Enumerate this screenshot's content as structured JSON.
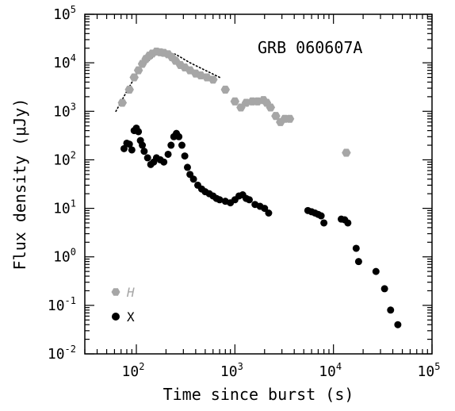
{
  "chart_data": {
    "type": "scatter",
    "title": "",
    "annotation": "GRB 060607A",
    "xlabel": "Time since burst (s)",
    "ylabel": "Flux density (μJy)",
    "xscale": "log",
    "yscale": "log",
    "xlim": [
      30,
      100000
    ],
    "ylim": [
      0.01,
      100000
    ],
    "x_ticks": [
      {
        "base": "10",
        "exp": "2",
        "value": 100
      },
      {
        "base": "10",
        "exp": "3",
        "value": 1000
      },
      {
        "base": "10",
        "exp": "4",
        "value": 10000
      },
      {
        "base": "10",
        "exp": "5",
        "value": 100000
      }
    ],
    "y_ticks": [
      {
        "base": "10",
        "exp": "-2",
        "value": 0.01
      },
      {
        "base": "10",
        "exp": "-1",
        "value": 0.1
      },
      {
        "base": "10",
        "exp": "0",
        "value": 1
      },
      {
        "base": "10",
        "exp": "1",
        "value": 10
      },
      {
        "base": "10",
        "exp": "2",
        "value": 100
      },
      {
        "base": "10",
        "exp": "3",
        "value": 1000
      },
      {
        "base": "10",
        "exp": "4",
        "value": 10000
      },
      {
        "base": "10",
        "exp": "5",
        "value": 100000
      }
    ],
    "legend_position": "lower-left",
    "series": [
      {
        "name": "H",
        "color": "#a6a6a6",
        "marker": "hexagon",
        "points": [
          [
            72,
            1500
          ],
          [
            85,
            2800
          ],
          [
            95,
            5000
          ],
          [
            105,
            7000
          ],
          [
            115,
            9500
          ],
          [
            125,
            12000
          ],
          [
            135,
            14000
          ],
          [
            145,
            15500
          ],
          [
            160,
            17000
          ],
          [
            175,
            16500
          ],
          [
            190,
            16000
          ],
          [
            210,
            15000
          ],
          [
            230,
            13000
          ],
          [
            250,
            11000
          ],
          [
            280,
            9000
          ],
          [
            310,
            8000
          ],
          [
            350,
            7000
          ],
          [
            400,
            6000
          ],
          [
            450,
            5500
          ],
          [
            520,
            5000
          ],
          [
            600,
            4500
          ],
          [
            800,
            2800
          ],
          [
            1000,
            1600
          ],
          [
            1150,
            1200
          ],
          [
            1300,
            1500
          ],
          [
            1500,
            1600
          ],
          [
            1700,
            1600
          ],
          [
            1950,
            1700
          ],
          [
            2100,
            1500
          ],
          [
            2300,
            1200
          ],
          [
            2600,
            800
          ],
          [
            2900,
            600
          ],
          [
            3200,
            700
          ],
          [
            3600,
            700
          ],
          [
            13500,
            140
          ]
        ]
      },
      {
        "name": "X",
        "color": "#000000",
        "marker": "circle",
        "points": [
          [
            75,
            170
          ],
          [
            80,
            220
          ],
          [
            85,
            210
          ],
          [
            90,
            160
          ],
          [
            95,
            400
          ],
          [
            100,
            450
          ],
          [
            105,
            380
          ],
          [
            110,
            250
          ],
          [
            115,
            200
          ],
          [
            120,
            150
          ],
          [
            130,
            110
          ],
          [
            140,
            80
          ],
          [
            150,
            90
          ],
          [
            160,
            110
          ],
          [
            175,
            100
          ],
          [
            190,
            90
          ],
          [
            210,
            130
          ],
          [
            225,
            200
          ],
          [
            240,
            300
          ],
          [
            255,
            350
          ],
          [
            270,
            300
          ],
          [
            290,
            200
          ],
          [
            310,
            120
          ],
          [
            330,
            70
          ],
          [
            350,
            50
          ],
          [
            380,
            40
          ],
          [
            420,
            30
          ],
          [
            460,
            25
          ],
          [
            500,
            22
          ],
          [
            550,
            20
          ],
          [
            600,
            18
          ],
          [
            650,
            16
          ],
          [
            700,
            15
          ],
          [
            800,
            14
          ],
          [
            900,
            13
          ],
          [
            1000,
            15
          ],
          [
            1100,
            18
          ],
          [
            1200,
            19
          ],
          [
            1300,
            16
          ],
          [
            1400,
            15
          ],
          [
            1600,
            12
          ],
          [
            1800,
            11
          ],
          [
            2000,
            10
          ],
          [
            2200,
            8
          ],
          [
            5500,
            9
          ],
          [
            6000,
            8.5
          ],
          [
            6500,
            8
          ],
          [
            7000,
            7.5
          ],
          [
            7500,
            7
          ],
          [
            8000,
            5
          ],
          [
            12000,
            6
          ],
          [
            13000,
            5.8
          ],
          [
            14000,
            5
          ],
          [
            17000,
            1.5
          ],
          [
            18000,
            0.8
          ],
          [
            27000,
            0.5
          ],
          [
            33000,
            0.22
          ],
          [
            38000,
            0.08
          ],
          [
            45000,
            0.04
          ]
        ]
      }
    ],
    "fit_line": {
      "style": "dotted",
      "points": [
        [
          62,
          1000
        ],
        [
          80,
          2600
        ],
        [
          110,
          8000
        ],
        [
          160,
          15000
        ],
        [
          200,
          16500
        ],
        [
          250,
          15000
        ],
        [
          350,
          10000
        ],
        [
          500,
          7000
        ],
        [
          700,
          5000
        ]
      ]
    }
  }
}
